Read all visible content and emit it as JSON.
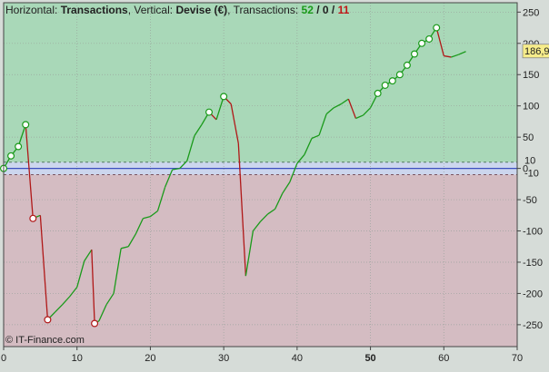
{
  "header": {
    "horizontal_label": "Horizontal:",
    "horizontal_value": "Transactions",
    "vertical_label": ", Vertical:",
    "vertical_value": "Devise (€)",
    "transactions_label": ", Transactions:",
    "count_win": "52",
    "sep1": " / ",
    "count_neutral": "0",
    "sep2": " / ",
    "count_loss": "11"
  },
  "credit": "© IT-Finance.com",
  "colors": {
    "positive_zone": "#a9d8b8",
    "negative_zone": "#d4bcc2",
    "neutral_band": "#ccd6ee",
    "up_line": "#1a9a1a",
    "down_line": "#b01818",
    "count_win": "#1a9a1a",
    "count_loss": "#c01818",
    "last_value_box": "#f6ec8a"
  },
  "chart_data": {
    "type": "line",
    "x_ticks": [
      "0",
      "10",
      "20",
      "30",
      "40",
      "50",
      "60",
      "70"
    ],
    "x_tick_bold": "50",
    "y_ticks": [
      "250",
      "200",
      "150",
      "100",
      "50",
      "0",
      "-50",
      "-100",
      "-150",
      "-200",
      "-250"
    ],
    "xlim": [
      0,
      70
    ],
    "ylim": [
      -285,
      265
    ],
    "threshold_upper": 10,
    "threshold_lower": -10,
    "threshold_upper_label": "10",
    "threshold_lower_label": "-10",
    "last_value_label": "186,9",
    "points": [
      [
        0,
        0
      ],
      [
        1,
        20
      ],
      [
        2,
        35
      ],
      [
        3,
        70
      ],
      [
        4,
        -80
      ],
      [
        5,
        -75
      ],
      [
        6,
        -242
      ],
      [
        7,
        -230
      ],
      [
        8,
        -218
      ],
      [
        9,
        -205
      ],
      [
        10,
        -190
      ],
      [
        11,
        -148
      ],
      [
        12,
        -130
      ],
      [
        12.4,
        -248
      ],
      [
        13,
        -244
      ],
      [
        14,
        -218
      ],
      [
        15,
        -200
      ],
      [
        16,
        -128
      ],
      [
        17,
        -125
      ],
      [
        18,
        -105
      ],
      [
        19,
        -80
      ],
      [
        20,
        -77
      ],
      [
        21,
        -68
      ],
      [
        22,
        -30
      ],
      [
        23,
        -2
      ],
      [
        24,
        0
      ],
      [
        25,
        12
      ],
      [
        26,
        52
      ],
      [
        27,
        70
      ],
      [
        28,
        90
      ],
      [
        29,
        78
      ],
      [
        30,
        115
      ],
      [
        31,
        103
      ],
      [
        32,
        40
      ],
      [
        33,
        -172
      ],
      [
        34,
        -100
      ],
      [
        35,
        -85
      ],
      [
        36,
        -73
      ],
      [
        37,
        -65
      ],
      [
        38,
        -40
      ],
      [
        39,
        -22
      ],
      [
        40,
        8
      ],
      [
        41,
        22
      ],
      [
        42,
        48
      ],
      [
        43,
        53
      ],
      [
        44,
        87
      ],
      [
        45,
        97
      ],
      [
        46,
        103
      ],
      [
        47,
        111
      ],
      [
        48,
        80
      ],
      [
        49,
        85
      ],
      [
        50,
        97
      ],
      [
        51,
        120
      ],
      [
        52,
        133
      ],
      [
        53,
        140
      ],
      [
        54,
        150
      ],
      [
        55,
        165
      ],
      [
        56,
        183
      ],
      [
        57,
        200
      ],
      [
        58,
        207
      ],
      [
        59,
        225
      ],
      [
        60,
        180
      ],
      [
        61,
        178
      ],
      [
        62,
        182
      ],
      [
        63,
        187
      ]
    ],
    "marker_points": [
      [
        0,
        0
      ],
      [
        1,
        20
      ],
      [
        2,
        35
      ],
      [
        3,
        70
      ],
      [
        4,
        -80
      ],
      [
        6,
        -242
      ],
      [
        12.4,
        -248
      ],
      [
        28,
        90
      ],
      [
        30,
        115
      ],
      [
        51,
        120
      ],
      [
        52,
        133
      ],
      [
        53,
        140
      ],
      [
        54,
        150
      ],
      [
        55,
        165
      ],
      [
        56,
        183
      ],
      [
        57,
        200
      ],
      [
        58,
        207
      ],
      [
        59,
        225
      ]
    ]
  }
}
